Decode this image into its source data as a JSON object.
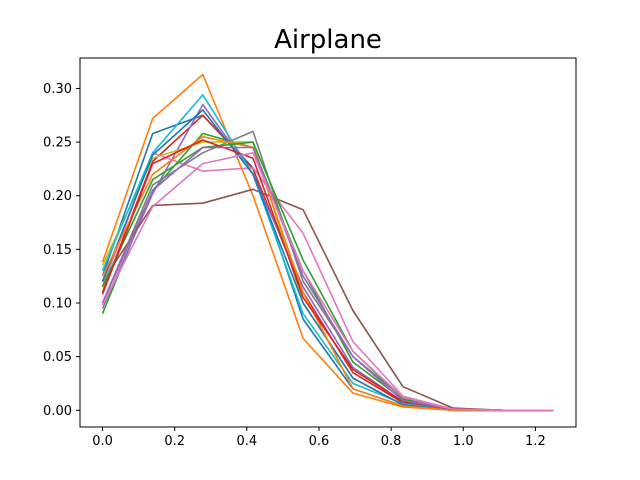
{
  "chart_data": {
    "type": "line",
    "title": "Airplane",
    "xlabel": "",
    "ylabel": "",
    "xlim": [
      -0.0625,
      1.3125
    ],
    "ylim": [
      -0.0156,
      0.3284
    ],
    "x": [
      0.0,
      0.139,
      0.278,
      0.417,
      0.556,
      0.694,
      0.833,
      0.972,
      1.111,
      1.25
    ],
    "xticks": [
      0.0,
      0.2,
      0.4,
      0.6,
      0.8,
      1.0,
      1.2
    ],
    "xtick_labels": [
      "0.0",
      "0.2",
      "0.4",
      "0.6",
      "0.8",
      "1.0",
      "1.2"
    ],
    "yticks": [
      0.0,
      0.05,
      0.1,
      0.15,
      0.2,
      0.25,
      0.3
    ],
    "ytick_labels": [
      "0.00",
      "0.05",
      "0.10",
      "0.15",
      "0.20",
      "0.25",
      "0.30"
    ],
    "grid": false,
    "legend": "none",
    "series": [
      {
        "color": "#1f77b4",
        "values": [
          0.125,
          0.258,
          0.275,
          0.226,
          0.085,
          0.02,
          0.004,
          0.0,
          0.0,
          0.0
        ]
      },
      {
        "color": "#ff7f0e",
        "values": [
          0.138,
          0.272,
          0.313,
          0.2,
          0.067,
          0.016,
          0.003,
          0.0,
          0.0,
          0.0
        ]
      },
      {
        "color": "#2ca02c",
        "values": [
          0.09,
          0.205,
          0.258,
          0.245,
          0.13,
          0.045,
          0.01,
          0.001,
          0.0,
          0.0
        ]
      },
      {
        "color": "#d62728",
        "values": [
          0.11,
          0.232,
          0.275,
          0.225,
          0.11,
          0.035,
          0.007,
          0.001,
          0.0,
          0.0
        ]
      },
      {
        "color": "#9467bd",
        "values": [
          0.095,
          0.202,
          0.285,
          0.22,
          0.115,
          0.04,
          0.008,
          0.001,
          0.0,
          0.0
        ]
      },
      {
        "color": "#8c564b",
        "values": [
          0.12,
          0.191,
          0.193,
          0.206,
          0.187,
          0.093,
          0.022,
          0.002,
          0.0,
          0.0
        ]
      },
      {
        "color": "#e377c2",
        "values": [
          0.115,
          0.24,
          0.223,
          0.226,
          0.165,
          0.064,
          0.013,
          0.001,
          0.0,
          0.0
        ]
      },
      {
        "color": "#7f7f7f",
        "values": [
          0.1,
          0.21,
          0.24,
          0.26,
          0.12,
          0.05,
          0.012,
          0.001,
          0.0,
          0.0
        ]
      },
      {
        "color": "#bcbd22",
        "values": [
          0.135,
          0.235,
          0.25,
          0.25,
          0.1,
          0.03,
          0.005,
          0.0,
          0.0,
          0.0
        ]
      },
      {
        "color": "#17becf",
        "values": [
          0.13,
          0.24,
          0.294,
          0.22,
          0.09,
          0.025,
          0.006,
          0.0,
          0.0,
          0.0
        ]
      },
      {
        "color": "#1f77b4",
        "values": [
          0.12,
          0.238,
          0.28,
          0.22,
          0.1,
          0.03,
          0.005,
          0.0,
          0.0,
          0.0
        ]
      },
      {
        "color": "#ff7f0e",
        "values": [
          0.125,
          0.22,
          0.255,
          0.245,
          0.11,
          0.02,
          0.004,
          0.0,
          0.0,
          0.0
        ]
      },
      {
        "color": "#2ca02c",
        "values": [
          0.115,
          0.215,
          0.245,
          0.25,
          0.14,
          0.055,
          0.011,
          0.001,
          0.0,
          0.0
        ]
      },
      {
        "color": "#d62728",
        "values": [
          0.108,
          0.23,
          0.252,
          0.235,
          0.105,
          0.038,
          0.008,
          0.001,
          0.0,
          0.0
        ]
      },
      {
        "color": "#9467bd",
        "values": [
          0.1,
          0.205,
          0.245,
          0.245,
          0.125,
          0.05,
          0.009,
          0.001,
          0.0,
          0.0
        ]
      },
      {
        "color": "#e377c2",
        "values": [
          0.098,
          0.19,
          0.23,
          0.24,
          0.13,
          0.055,
          0.012,
          0.001,
          0.0,
          0.0
        ]
      }
    ]
  }
}
